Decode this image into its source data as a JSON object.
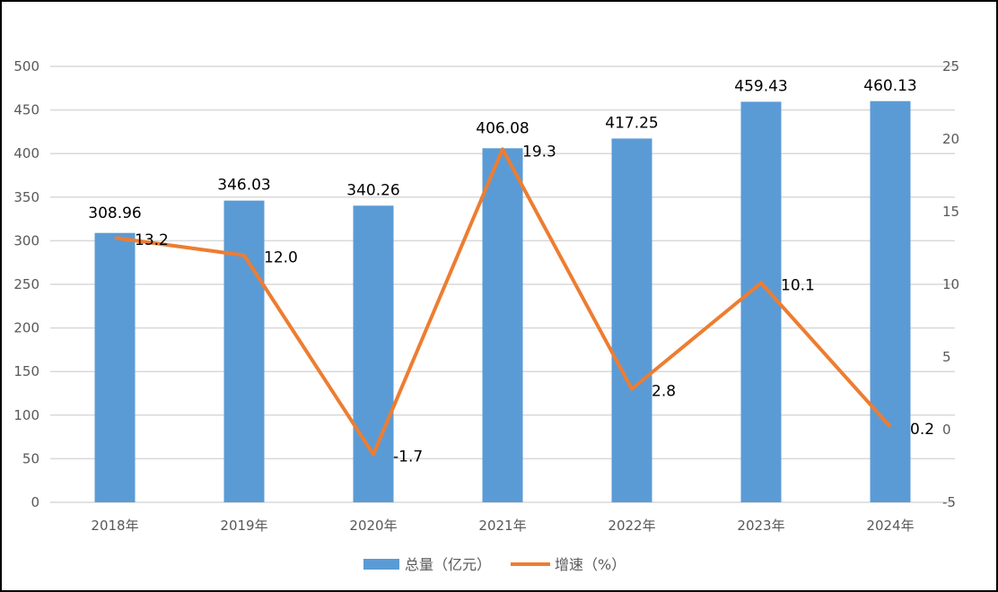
{
  "chart_data": {
    "type": "bar+line",
    "categories": [
      "2018年",
      "2019年",
      "2020年",
      "2021年",
      "2022年",
      "2023年",
      "2024年"
    ],
    "series": [
      {
        "name": "总量（亿元）",
        "type": "bar",
        "axis": "left",
        "color": "#5B9BD5",
        "values": [
          308.96,
          346.03,
          340.26,
          406.08,
          417.25,
          459.43,
          460.13
        ],
        "labels": [
          "308.96",
          "346.03",
          "340.26",
          "406.08",
          "417.25",
          "459.43",
          "460.13"
        ]
      },
      {
        "name": "增速（%）",
        "type": "line",
        "axis": "right",
        "color": "#ED7D31",
        "values": [
          13.2,
          12.0,
          -1.7,
          19.3,
          2.8,
          10.1,
          0.2
        ],
        "labels": [
          "13.2",
          "12.0",
          "-1.7",
          "19.3",
          "2.8",
          "10.1",
          "0.2"
        ]
      }
    ],
    "y_left": {
      "lim": [
        0,
        500
      ],
      "ticks": [
        "0",
        "50",
        "100",
        "150",
        "200",
        "250",
        "300",
        "350",
        "400",
        "450",
        "500"
      ]
    },
    "y_right": {
      "lim": [
        -5,
        25
      ],
      "ticks": [
        "-5",
        "0",
        "5",
        "10",
        "15",
        "20",
        "25"
      ]
    },
    "grid": true,
    "legend": "bottom",
    "title": "",
    "xlabel": "",
    "ylabel": ""
  }
}
